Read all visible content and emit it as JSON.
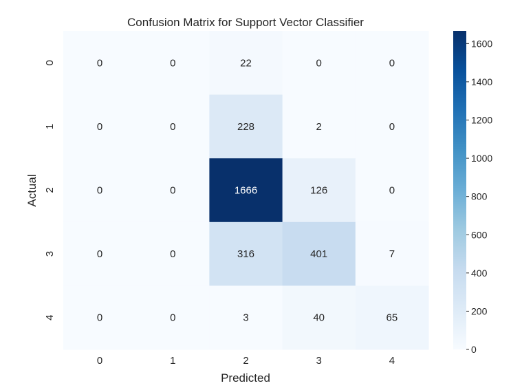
{
  "chart_data": {
    "type": "heatmap",
    "title": "Confusion Matrix for Support Vector Classifier",
    "xlabel": "Predicted",
    "ylabel": "Actual",
    "x_categories": [
      "0",
      "1",
      "2",
      "3",
      "4"
    ],
    "y_categories": [
      "0",
      "1",
      "2",
      "3",
      "4"
    ],
    "values": [
      [
        0,
        0,
        22,
        0,
        0
      ],
      [
        0,
        0,
        228,
        2,
        0
      ],
      [
        0,
        0,
        1666,
        126,
        0
      ],
      [
        0,
        0,
        316,
        401,
        7
      ],
      [
        0,
        0,
        3,
        40,
        65
      ]
    ],
    "colormap": "Blues",
    "vmin": 0,
    "vmax": 1666,
    "colorbar_ticks": [
      0,
      200,
      400,
      600,
      800,
      1000,
      1200,
      1400,
      1600
    ],
    "colorbar_tick_labels": [
      "0",
      "200",
      "400",
      "600",
      "800",
      "1000",
      "1200",
      "1400",
      "1600"
    ],
    "colors": {
      "low": "#f7fbff",
      "high": "#08306b",
      "text_dark": "#262626",
      "text_light": "#ffffff"
    }
  }
}
